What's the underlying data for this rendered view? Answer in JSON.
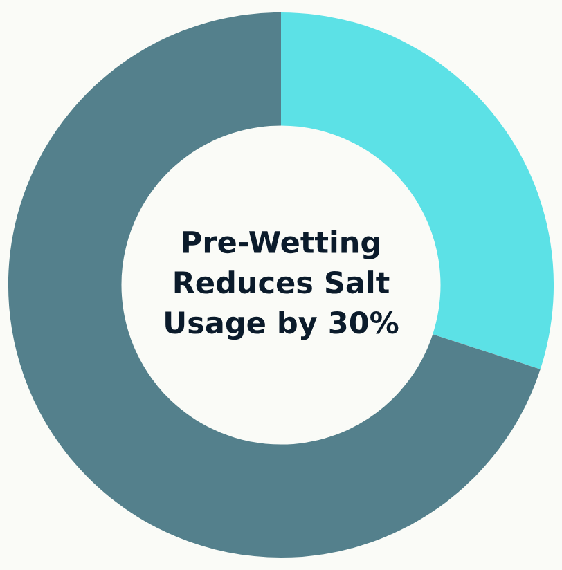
{
  "chart_data": {
    "type": "donut",
    "title": "Pre-Wetting\nReduces Salt\nUsage by 30%",
    "categories": [
      null,
      null
    ],
    "values": [
      30,
      70
    ],
    "colors": [
      "#5ce1e6",
      "#54808c"
    ]
  }
}
